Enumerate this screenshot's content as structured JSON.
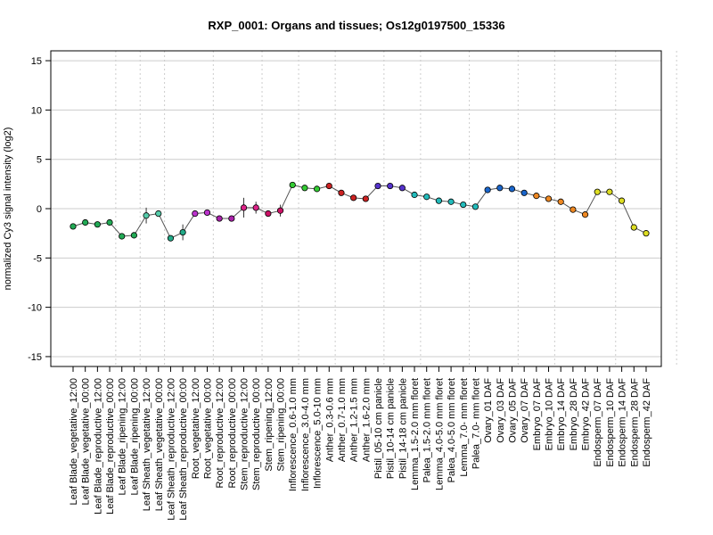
{
  "chart_data": {
    "type": "line",
    "title": "RXP_0001: Organs and tissues; Os12g0197500_15336",
    "xlabel": "",
    "ylabel": "normalized Cy3 signal intensity (log2)",
    "ylim": [
      -16,
      16
    ],
    "yticks": [
      -15,
      -10,
      -5,
      0,
      5,
      10,
      15
    ],
    "grid": true,
    "vertical_group_separators_after_index": [
      3,
      5,
      7,
      11,
      15,
      18,
      21,
      25,
      28,
      32,
      36,
      39,
      44,
      49
    ],
    "categories": [
      "Leaf Blade_vegetative_12:00",
      "Leaf Blade_vegetative_00:00",
      "Leaf Blade_reproductive_12:00",
      "Leaf Blade_reproductive_00:00",
      "Leaf Blade_ripening_12:00",
      "Leaf Blade_ripening_00:00",
      "Leaf Sheath_vegetative_12:00",
      "Leaf Sheath_vegetative_00:00",
      "Leaf Sheath_reproductive_12:00",
      "Leaf Sheath_reproductive_00:00",
      "Root_vegetative_12:00",
      "Root_vegetative_00:00",
      "Root_reproductive_12:00",
      "Root_reproductive_00:00",
      "Stem_reproductive_12:00",
      "Stem_reproductive_00:00",
      "Stem_ripening_12:00",
      "Stem_ripening_00:00",
      "Inflorescence_0.6-1.0 mm",
      "Inflorescence_3.0-4.0 mm",
      "Inflorescence_5.0-10 mm",
      "Anther_0.3-0.6 mm",
      "Anther_0.7-1.0 mm",
      "Anther_1.2-1.5 mm",
      "Anther_1.6-2.0 mm",
      "Pistil_05-10 cm panicle",
      "Pistil_10-14 cm panicle",
      "Pistil_14-18 cm panicle",
      "Lemma_1.5-2.0 mm floret",
      "Palea_1.5-2.0 mm floret",
      "Lemma_4.0-5.0 mm floret",
      "Palea_4.0-5.0 mm floret",
      "Lemma_7.0- mm floret",
      "Palea_7.0- mm floret",
      "Ovary_01 DAF",
      "Ovary_03 DAF",
      "Ovary_05 DAF",
      "Ovary_07 DAF",
      "Embryo_07 DAF",
      "Embryo_10 DAF",
      "Embryo_14 DAF",
      "Embryo_28 DAF",
      "Embryo_42 DAF",
      "Endosperm_07 DAF",
      "Endosperm_10 DAF",
      "Endosperm_14 DAF",
      "Endosperm_28 DAF",
      "Endosperm_42 DAF"
    ],
    "series": [
      {
        "values": [
          -1.8,
          -1.4,
          -1.6,
          -1.4,
          -2.8,
          -2.7,
          -0.7,
          -0.5,
          -3.0,
          -2.4,
          -0.5,
          -0.4,
          -1.0,
          -1.0,
          0.1,
          0.1,
          -0.5,
          -0.2,
          2.4,
          2.1,
          2.0,
          2.3,
          1.6,
          1.1,
          1.0,
          2.3,
          2.3,
          2.1,
          1.4,
          1.2,
          0.8,
          0.7,
          0.4,
          0.2,
          1.9,
          2.1,
          2.0,
          1.6,
          1.3,
          1.0,
          0.7,
          -0.1,
          -0.6,
          1.7,
          1.7,
          0.8,
          -1.9,
          -2.5
        ],
        "errors": [
          0.3,
          0.3,
          0.2,
          0.2,
          0.2,
          0.2,
          0.8,
          0.2,
          0.3,
          0.8,
          0.2,
          0.3,
          0.2,
          0.2,
          1.0,
          0.6,
          0.3,
          0.6,
          0.2,
          0.2,
          0.2,
          0.2,
          0.2,
          0.3,
          0.2,
          0.2,
          0.2,
          0.2,
          0.2,
          0.2,
          0.2,
          0.2,
          0.2,
          0.2,
          0.2,
          0.2,
          0.2,
          0.2,
          0.2,
          0.2,
          0.2,
          0.2,
          0.2,
          0.2,
          0.2,
          0.2,
          0.2,
          0.2
        ],
        "point_colors": [
          "#22aa55",
          "#22aa55",
          "#22aa55",
          "#22aa55",
          "#22aa55",
          "#22aa55",
          "#55ccaa",
          "#55ccaa",
          "#22aa88",
          "#22aa88",
          "#bb33cc",
          "#bb33cc",
          "#aa22aa",
          "#aa22aa",
          "#dd2288",
          "#dd2288",
          "#cc1166",
          "#cc1166",
          "#33cc33",
          "#33cc33",
          "#33cc33",
          "#cc2222",
          "#cc2222",
          "#cc2222",
          "#cc2222",
          "#5533cc",
          "#5533cc",
          "#5533cc",
          "#22bbbb",
          "#22bbbb",
          "#22bbbb",
          "#22bbbb",
          "#22bbbb",
          "#22bbbb",
          "#1a66cc",
          "#1a66cc",
          "#1a66cc",
          "#1a66cc",
          "#ee8822",
          "#ee8822",
          "#ee8822",
          "#ee8822",
          "#ee8822",
          "#dddd22",
          "#dddd22",
          "#dddd22",
          "#dddd22",
          "#dddd22"
        ]
      }
    ]
  }
}
